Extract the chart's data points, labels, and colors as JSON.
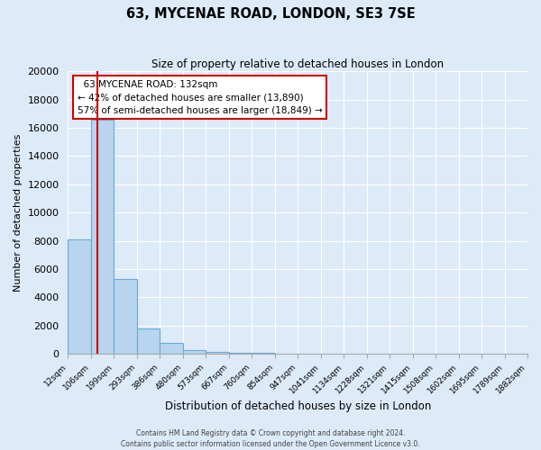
{
  "title": "63, MYCENAE ROAD, LONDON, SE3 7SE",
  "subtitle": "Size of property relative to detached houses in London",
  "xlabel": "Distribution of detached houses by size in London",
  "ylabel": "Number of detached properties",
  "bar_color": "#b8d4ee",
  "bar_edge_color": "#6aaad4",
  "background_color": "#ddeaf8",
  "plot_bg_color": "#ddeaf8",
  "grid_color": "#ffffff",
  "red_line_x": 132,
  "annotation_title": "63 MYCENAE ROAD: 132sqm",
  "annotation_line1": "← 42% of detached houses are smaller (13,890)",
  "annotation_line2": "57% of semi-detached houses are larger (18,849) →",
  "annotation_box_color": "#ffffff",
  "annotation_box_edge": "#cc0000",
  "red_line_color": "#cc0000",
  "bin_edges": [
    12,
    106,
    199,
    293,
    386,
    480,
    573,
    667,
    760,
    854,
    947,
    1041,
    1134,
    1228,
    1321,
    1415,
    1508,
    1602,
    1695,
    1789,
    1882
  ],
  "bin_labels": [
    "12sqm",
    "106sqm",
    "199sqm",
    "293sqm",
    "386sqm",
    "480sqm",
    "573sqm",
    "667sqm",
    "760sqm",
    "854sqm",
    "947sqm",
    "1041sqm",
    "1134sqm",
    "1228sqm",
    "1321sqm",
    "1415sqm",
    "1508sqm",
    "1602sqm",
    "1695sqm",
    "1789sqm",
    "1882sqm"
  ],
  "bar_heights": [
    8100,
    16600,
    5300,
    1800,
    750,
    270,
    120,
    90,
    60,
    0,
    0,
    0,
    0,
    0,
    0,
    0,
    0,
    0,
    0,
    0
  ],
  "ylim": [
    0,
    20000
  ],
  "yticks": [
    0,
    2000,
    4000,
    6000,
    8000,
    10000,
    12000,
    14000,
    16000,
    18000,
    20000
  ],
  "footer_line1": "Contains HM Land Registry data © Crown copyright and database right 2024.",
  "footer_line2": "Contains public sector information licensed under the Open Government Licence v3.0."
}
